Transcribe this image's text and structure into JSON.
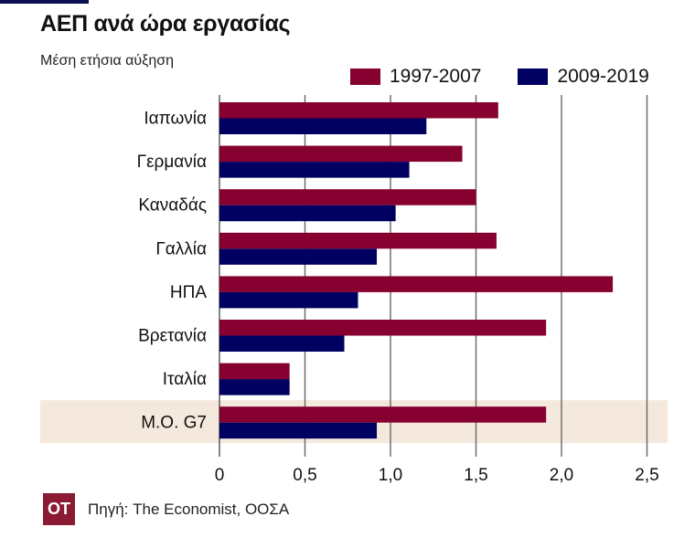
{
  "header": {
    "title": "ΑΕΠ ανά  ώρα εργασίας",
    "subtitle": "Μέση ετήσια αύξηση"
  },
  "footer": {
    "logo_text": "OT",
    "source": "Πηγή: The Economist, ΟΟΣΑ"
  },
  "colors": {
    "series1": "#860030",
    "series2": "#000060",
    "highlight": "#f5e9de",
    "grid": "#666666"
  },
  "chart_data": {
    "type": "bar",
    "orientation": "horizontal",
    "title": "ΑΕΠ ανά  ώρα εργασίας",
    "subtitle": "Μέση ετήσια αύξηση",
    "xlabel": "",
    "ylabel": "",
    "categories": [
      "Ιαπωνία",
      "Γερμανία",
      "Καναδάς",
      "Γαλλία",
      "ΗΠΑ",
      "Βρετανία",
      "Ιταλία",
      "Μ.Ο. G7"
    ],
    "series": [
      {
        "name": "1997-2007",
        "values": [
          1.63,
          1.42,
          1.5,
          1.62,
          2.3,
          1.91,
          0.41,
          1.91
        ]
      },
      {
        "name": "2009-2019",
        "values": [
          1.21,
          1.11,
          1.03,
          0.92,
          0.81,
          0.73,
          0.41,
          0.92
        ]
      }
    ],
    "xlim": [
      0,
      2.6
    ],
    "xticks": [
      0,
      0.5,
      1.0,
      1.5,
      2.0,
      2.5
    ],
    "xtick_labels": [
      "0",
      "0,5",
      "1,0",
      "1,5",
      "2,0",
      "2,5"
    ],
    "grid": true,
    "legend_position": "top-right",
    "highlighted_category": "Μ.Ο. G7"
  }
}
